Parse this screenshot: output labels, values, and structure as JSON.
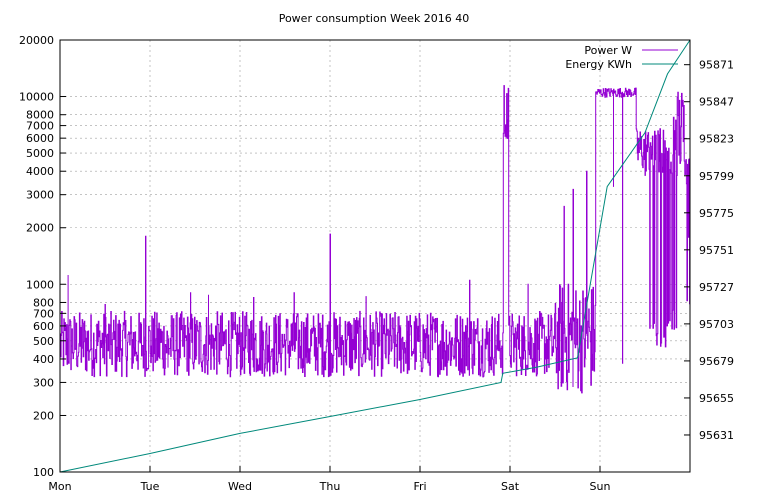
{
  "chart_data": {
    "type": "line",
    "title": "Power consumption Week 2016 40",
    "xlabel": "",
    "ylabel": "",
    "x_categories": [
      "Mon",
      "Tue",
      "Wed",
      "Thu",
      "Fri",
      "Sat",
      "Sun"
    ],
    "x_range_days": [
      0,
      7
    ],
    "y_left": {
      "scale": "log",
      "range": [
        100,
        20000
      ],
      "tick_values": [
        100,
        200,
        300,
        400,
        500,
        600,
        700,
        800,
        1000,
        2000,
        3000,
        4000,
        5000,
        6000,
        7000,
        8000,
        10000,
        20000
      ],
      "tick_labels": [
        "100",
        "200",
        "300",
        "400",
        "500",
        "600",
        "700",
        "800",
        "1000",
        "2000",
        "3000",
        "4000",
        "5000",
        "6000",
        "7000",
        "8000",
        "10000",
        "20000"
      ]
    },
    "y_right": {
      "scale": "linear",
      "range": [
        95607,
        95887
      ],
      "tick_values": [
        95631,
        95655,
        95679,
        95703,
        95727,
        95751,
        95775,
        95799,
        95823,
        95847,
        95871
      ],
      "tick_labels": [
        "95631",
        "95655",
        "95679",
        "95703",
        "95727",
        "95751",
        "95775",
        "95799",
        "95823",
        "95847",
        "95871"
      ]
    },
    "grid": true,
    "legend_position": "top-right",
    "series": [
      {
        "name": "Power W",
        "axis": "left",
        "color": "#9400d3",
        "spikes": [
          {
            "x": 0.09,
            "y": 1120
          },
          {
            "x": 0.5,
            "y": 780
          },
          {
            "x": 0.95,
            "y": 1800
          },
          {
            "x": 1.45,
            "y": 900
          },
          {
            "x": 1.65,
            "y": 880
          },
          {
            "x": 2.15,
            "y": 850
          },
          {
            "x": 2.6,
            "y": 900
          },
          {
            "x": 3.0,
            "y": 1850
          },
          {
            "x": 3.4,
            "y": 860
          },
          {
            "x": 4.55,
            "y": 1050
          },
          {
            "x": 5.2,
            "y": 1000
          },
          {
            "x": 5.6,
            "y": 2600
          },
          {
            "x": 5.7,
            "y": 3200
          },
          {
            "x": 5.85,
            "y": 4000
          },
          {
            "x": 6.15,
            "y": 3300
          },
          {
            "x": 6.5,
            "y": 3800
          }
        ],
        "dips": [
          {
            "x": 0.3,
            "y": 350
          },
          {
            "x": 1.2,
            "y": 360
          },
          {
            "x": 2.3,
            "y": 345
          },
          {
            "x": 3.25,
            "y": 355
          },
          {
            "x": 4.1,
            "y": 370
          },
          {
            "x": 5.15,
            "y": 400
          },
          {
            "x": 6.25,
            "y": 380
          }
        ]
      },
      {
        "name": "Energy KWh",
        "axis": "right",
        "color": "#00897b",
        "points": [
          [
            0.0,
            95607
          ],
          [
            1.0,
            95619
          ],
          [
            2.0,
            95632
          ],
          [
            3.0,
            95643
          ],
          [
            4.0,
            95654
          ],
          [
            4.9,
            95665
          ],
          [
            4.92,
            95671
          ],
          [
            5.3,
            95675
          ],
          [
            5.75,
            95681
          ],
          [
            6.08,
            95792
          ],
          [
            6.5,
            95827
          ],
          [
            6.75,
            95865
          ],
          [
            7.0,
            95887
          ]
        ]
      }
    ]
  }
}
